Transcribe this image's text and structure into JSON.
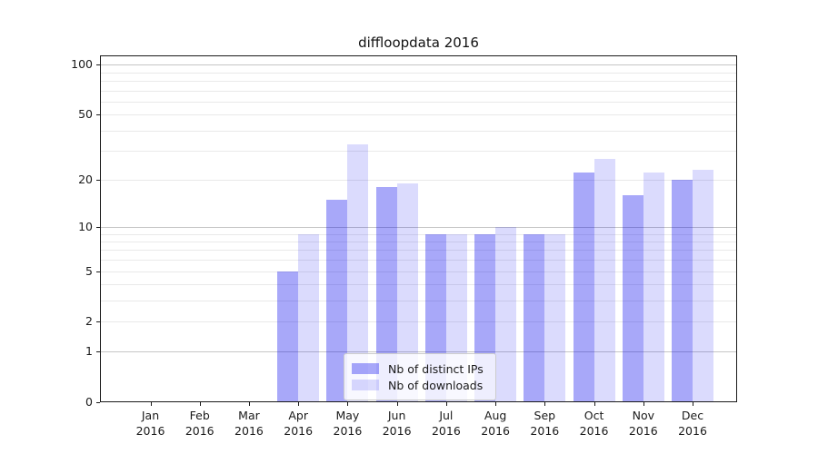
{
  "title": "diffloopdata 2016",
  "legend": {
    "entries": [
      {
        "label": "Nb of distinct IPs",
        "color": "rgba(0,0,238,0.34)"
      },
      {
        "label": "Nb of downloads",
        "color": "rgba(0,0,238,0.14)"
      }
    ],
    "position": "lower center"
  },
  "colors": {
    "bar_distinct_ips": "rgba(0,0,238,0.34)",
    "bar_downloads": "rgba(0,0,238,0.14)",
    "grid_major": "#c6c6c6",
    "grid_minor": "#e9e9e9",
    "axis_frame": "#1a1a1a"
  },
  "chart_data": {
    "type": "bar",
    "title": "diffloopdata 2016",
    "categories": [
      "Jan 2016",
      "Feb 2016",
      "Mar 2016",
      "Apr 2016",
      "May 2016",
      "Jun 2016",
      "Jul 2016",
      "Aug 2016",
      "Sep 2016",
      "Oct 2016",
      "Nov 2016",
      "Dec 2016"
    ],
    "series": [
      {
        "name": "Nb of distinct IPs",
        "values": [
          0,
          0,
          0,
          5,
          15,
          18,
          9,
          9,
          9,
          22,
          16,
          20
        ]
      },
      {
        "name": "Nb of downloads",
        "values": [
          0,
          0,
          0,
          9,
          33,
          19,
          9,
          10,
          9,
          27,
          22,
          23
        ]
      }
    ],
    "xlabel": "",
    "ylabel": "",
    "yscale": "log10(value+1)",
    "yticks": [
      0,
      1,
      2,
      5,
      10,
      20,
      50,
      100
    ],
    "ygrid_minor": [
      2,
      3,
      4,
      5,
      6,
      7,
      8,
      9,
      20,
      30,
      40,
      50,
      60,
      70,
      80,
      90
    ],
    "ygrid_major": [
      1,
      10,
      100
    ],
    "ylim": [
      0,
      114
    ],
    "grid": true,
    "legend_position": "lower center"
  }
}
